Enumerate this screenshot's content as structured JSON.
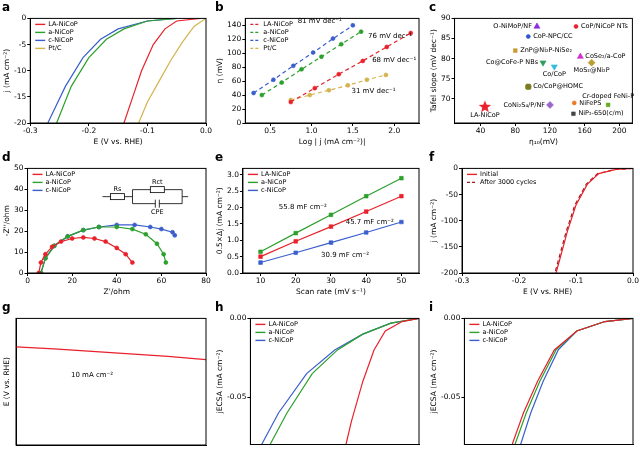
{
  "chart_data": [
    {
      "type": "line",
      "title": "a",
      "x_label": "E (V vs. RHE)",
      "y_label": "j (mA cm⁻²)",
      "xlim": [
        -0.3,
        0.0
      ],
      "xticks": [
        -0.3,
        -0.2,
        -0.1,
        {
          "value": 0,
          "label": "0.0"
        }
      ],
      "ylim": [
        -20,
        0
      ],
      "yticks": [
        -20,
        -15,
        -10,
        -5,
        0
      ],
      "grid": false,
      "legend": "top-left",
      "series": [
        {
          "name": "LA-NiCoP",
          "color": "#e8212b",
          "marker": "none",
          "line_style": "solid",
          "x": [
            -0.01,
            -0.05,
            -0.07,
            -0.09,
            -0.11,
            -0.125,
            -0.14
          ],
          "values": [
            0,
            -0.5,
            -2,
            -5,
            -10,
            -15,
            -20
          ]
        },
        {
          "name": "a-NiCoP",
          "color": "#2ca02c",
          "marker": "none",
          "line_style": "solid",
          "x": [
            -0.05,
            -0.1,
            -0.14,
            -0.17,
            -0.2,
            -0.23,
            -0.255
          ],
          "values": [
            0,
            -0.5,
            -2,
            -4,
            -7.5,
            -13,
            -20
          ]
        },
        {
          "name": "c-NiCoP",
          "color": "#3a5fcd",
          "marker": "none",
          "line_style": "solid",
          "x": [
            -0.05,
            -0.1,
            -0.15,
            -0.18,
            -0.21,
            -0.24,
            -0.27
          ],
          "values": [
            0,
            -0.5,
            -2,
            -4,
            -7.5,
            -13,
            -20
          ]
        },
        {
          "name": "Pt/C",
          "color": "#d4b24c",
          "marker": "none",
          "line_style": "solid",
          "x": [
            0,
            -0.02,
            -0.04,
            -0.06,
            -0.08,
            -0.1,
            -0.115
          ],
          "values": [
            0,
            -1.5,
            -4.5,
            -8,
            -12,
            -16,
            -20
          ]
        }
      ]
    },
    {
      "type": "line",
      "title": "b",
      "x_label": "Log | j (mA cm⁻²)|",
      "y_label": "η (mV)",
      "xlim": [
        0.2,
        2.3
      ],
      "xticks": [
        0.5,
        {
          "value": 1,
          "label": "1.0"
        },
        1.5,
        {
          "value": 2,
          "label": "2.0"
        }
      ],
      "ylim": [
        0,
        150
      ],
      "yticks": [
        0,
        20,
        40,
        60,
        80,
        100,
        120,
        140
      ],
      "grid": false,
      "legend": "top-left",
      "series": [
        {
          "name": "LA-NiCoP",
          "color": "#e8212b",
          "marker": "circle",
          "line_style": "dashed",
          "x": [
            0.75,
            1.04,
            1.33,
            1.62,
            1.91,
            2.2
          ],
          "values": [
            30,
            50,
            70,
            89,
            109,
            129
          ]
        },
        {
          "name": "a-NiCoP",
          "color": "#2ca02c",
          "marker": "circle",
          "line_style": "dashed",
          "x": [
            0.4,
            0.64,
            0.88,
            1.12,
            1.36,
            1.6
          ],
          "values": [
            40,
            58,
            77,
            95,
            113,
            131
          ]
        },
        {
          "name": "c-NiCoP",
          "color": "#3a5fcd",
          "marker": "circle",
          "line_style": "dashed",
          "x": [
            0.3,
            0.54,
            0.78,
            1.02,
            1.26,
            1.5
          ],
          "values": [
            43,
            62,
            82,
            101,
            121,
            140
          ]
        },
        {
          "name": "Pt/C",
          "color": "#d4b24c",
          "marker": "circle",
          "line_style": "dashed",
          "x": [
            0.75,
            0.98,
            1.21,
            1.44,
            1.67,
            1.9
          ],
          "values": [
            33,
            40,
            47,
            54,
            62,
            69
          ]
        }
      ],
      "annotations": [
        {
          "text": "81 mV dec⁻¹",
          "x": 1.1,
          "y": 146
        },
        {
          "text": "76 mV dec⁻¹",
          "x": 1.95,
          "y": 125
        },
        {
          "text": "68 mV dec⁻¹",
          "x": 2.0,
          "y": 90
        },
        {
          "text": "31 mV dec⁻¹",
          "x": 1.75,
          "y": 45
        }
      ]
    },
    {
      "type": "scatter",
      "title": "c",
      "x_label": "η₁₀(mV)",
      "y_label": "Tafel slope (mV dec⁻¹)",
      "xlim": [
        10,
        215
      ],
      "xticks": [
        40,
        80,
        120,
        160,
        200
      ],
      "ylim": [
        64,
        90
      ],
      "yticks": [
        70,
        75,
        80,
        85,
        90
      ],
      "grid": false,
      "series": [
        {
          "name": "O-NiMoP/NF",
          "color": "#8a2be2",
          "marker": "triangle",
          "line_style": "none",
          "x": [
            105
          ],
          "values": [
            88
          ]
        },
        {
          "name": "CoP/NiCoP NTs",
          "color": "#e8212b",
          "marker": "circle",
          "line_style": "none",
          "x": [
            150
          ],
          "values": [
            88
          ]
        },
        {
          "name": "CoP-NPC/CC",
          "color": "#3355cc",
          "marker": "circle",
          "line_style": "none",
          "x": [
            95
          ],
          "values": [
            85.5
          ]
        },
        {
          "name": "ZnP@Ni₂P-NiSe₂",
          "color": "#cc9933",
          "marker": "square",
          "line_style": "none",
          "x": [
            80
          ],
          "values": [
            82
          ]
        },
        {
          "name": "Co@CoFe-P NBs",
          "color": "#2e9e5e",
          "marker": "triangle_down",
          "line_style": "none",
          "x": [
            112
          ],
          "values": [
            79
          ]
        },
        {
          "name": "CoSe₂/a-CoP",
          "color": "#cc33cc",
          "marker": "triangle",
          "line_style": "none",
          "x": [
            155
          ],
          "values": [
            80.5
          ]
        },
        {
          "name": "Co/CoP",
          "color": "#33bbdd",
          "marker": "triangle_down",
          "line_style": "none",
          "x": [
            125
          ],
          "values": [
            78
          ]
        },
        {
          "name": "MoS₂@Ni₂P",
          "color": "#b8a030",
          "marker": "diamond",
          "line_style": "none",
          "x": [
            168
          ],
          "values": [
            79
          ]
        },
        {
          "name": "Co/CoP@HOMC",
          "color": "#7a7a20",
          "marker": "rounded_square",
          "line_style": "none",
          "x": [
            95
          ],
          "values": [
            73
          ]
        },
        {
          "name": "CoNi₂S₄/P/NF",
          "color": "#9966cc",
          "marker": "diamond",
          "line_style": "none",
          "x": [
            120
          ],
          "values": [
            68.5
          ]
        },
        {
          "name": "NiFePS",
          "color": "#ee7722",
          "marker": "circle",
          "line_style": "none",
          "x": [
            148
          ],
          "values": [
            69
          ]
        },
        {
          "name": "Cr-doped FeNi-P",
          "color": "#66aa22",
          "marker": "square",
          "line_style": "none",
          "x": [
            187
          ],
          "values": [
            68.5
          ]
        },
        {
          "name": "NiP₂-650(c/m)",
          "color": "#444444",
          "marker": "square",
          "line_style": "none",
          "x": [
            147
          ],
          "values": [
            66.3
          ]
        },
        {
          "name": "LA-NiCoP",
          "color": "#e8212b",
          "marker": "star",
          "line_style": "none",
          "x": [
            45
          ],
          "values": [
            68
          ]
        }
      ]
    },
    {
      "type": "line",
      "title": "d",
      "x_label": "Z'/ohm",
      "y_label": "-Z''/ohm",
      "xlim": [
        0,
        80
      ],
      "xticks": [
        0,
        20,
        40,
        60,
        80
      ],
      "ylim": [
        0,
        50
      ],
      "yticks": [
        0,
        10,
        20,
        30,
        40,
        50
      ],
      "grid": false,
      "legend": "top-left",
      "inset_labels": [
        "Rs",
        "Rct",
        "CPE"
      ],
      "series": [
        {
          "name": "LA-NiCoP",
          "color": "#e8212b",
          "marker": "circle",
          "line_style": "solid",
          "x": [
            5,
            6,
            8,
            11,
            15,
            20,
            25,
            30,
            35,
            40,
            44,
            47
          ],
          "values": [
            0,
            5,
            9,
            12.5,
            15,
            16.5,
            17,
            16.5,
            15,
            12,
            9,
            5
          ]
        },
        {
          "name": "a-NiCoP",
          "color": "#2ca02c",
          "marker": "circle",
          "line_style": "solid",
          "x": [
            6,
            8,
            12,
            18,
            25,
            32,
            40,
            47,
            53,
            58,
            61,
            62
          ],
          "values": [
            0,
            7,
            13,
            17.5,
            20.5,
            22,
            22,
            21,
            18.5,
            14,
            9,
            5
          ]
        },
        {
          "name": "c-NiCoP",
          "color": "#3a5fcd",
          "marker": "circle",
          "line_style": "solid",
          "x": [
            6,
            8,
            12,
            18,
            25,
            32,
            40,
            48,
            55,
            60,
            65,
            66
          ],
          "values": [
            0,
            7,
            13,
            17.5,
            20.5,
            22,
            23,
            23,
            22,
            21,
            19.5,
            18
          ]
        }
      ]
    },
    {
      "type": "line",
      "title": "e",
      "x_label": "Scan rate (mV s⁻¹)",
      "y_label": "0.5×Δj (mA cm⁻²)",
      "xlim": [
        5,
        55
      ],
      "xticks": [
        10,
        20,
        30,
        40,
        50
      ],
      "ylim": [
        0,
        3.2
      ],
      "yticks": [
        {
          "value": 0,
          "label": "0.0"
        },
        0.5,
        {
          "value": 1,
          "label": "1.0"
        },
        1.5,
        {
          "value": 2,
          "label": "2.0"
        },
        2.5,
        {
          "value": 3,
          "label": "3.0"
        }
      ],
      "grid": false,
      "legend": "top-left",
      "series": [
        {
          "name": "LA-NiCoP",
          "color": "#e8212b",
          "marker": "square",
          "line_style": "solid",
          "x": [
            10,
            20,
            30,
            40,
            50
          ],
          "values": [
            0.5,
            0.97,
            1.42,
            1.88,
            2.35
          ]
        },
        {
          "name": "a-NiCoP",
          "color": "#2ca02c",
          "marker": "square",
          "line_style": "solid",
          "x": [
            10,
            20,
            30,
            40,
            50
          ],
          "values": [
            0.65,
            1.22,
            1.78,
            2.35,
            2.9
          ]
        },
        {
          "name": "c-NiCoP",
          "color": "#3a5fcd",
          "marker": "square",
          "line_style": "solid",
          "x": [
            10,
            20,
            30,
            40,
            50
          ],
          "values": [
            0.32,
            0.62,
            0.93,
            1.24,
            1.56
          ]
        }
      ],
      "annotations": [
        {
          "text": "55.8 mF cm⁻²",
          "x": 22,
          "y": 2.0
        },
        {
          "text": "45.7 mF cm⁻²",
          "x": 41,
          "y": 1.55
        },
        {
          "text": "30.9 mF cm⁻²",
          "x": 34,
          "y": 0.55
        }
      ]
    },
    {
      "type": "line",
      "title": "f",
      "x_label": "E (V vs. RHE)",
      "y_label": "j (mA cm⁻²)",
      "xlim": [
        -0.3,
        0.0
      ],
      "xticks": [
        -0.3,
        -0.2,
        -0.1,
        {
          "value": 0,
          "label": "0.0"
        }
      ],
      "ylim": [
        -200,
        0
      ],
      "yticks": [
        -200,
        -150,
        -100,
        -50,
        0
      ],
      "grid": false,
      "legend": "top-left",
      "series": [
        {
          "name": "Initial",
          "color": "#e8212b",
          "marker": "none",
          "line_style": "solid",
          "x": [
            0,
            -0.03,
            -0.06,
            -0.08,
            -0.1,
            -0.115,
            -0.125,
            -0.135
          ],
          "values": [
            0,
            -2,
            -10,
            -30,
            -70,
            -120,
            -160,
            -200
          ]
        },
        {
          "name": "After 3000 cycles",
          "color": "#a01818",
          "marker": "none",
          "line_style": "dashed",
          "x": [
            0,
            -0.032,
            -0.062,
            -0.082,
            -0.102,
            -0.117,
            -0.127,
            -0.137
          ],
          "values": [
            0,
            -2,
            -10,
            -30,
            -70,
            -120,
            -160,
            -200
          ]
        }
      ]
    },
    {
      "type": "line",
      "title": "g",
      "y_label": "E (V vs. RHE)",
      "xlim": [
        0,
        10
      ],
      "ylim": [
        -0.2,
        0.0
      ],
      "grid": false,
      "tick_labels": false,
      "series": [
        {
          "name": "LA-NiCoP",
          "color": "#e8212b",
          "marker": "none",
          "line_style": "solid",
          "x": [
            0,
            2,
            4,
            6,
            8,
            10
          ],
          "values": [
            -0.045,
            -0.048,
            -0.052,
            -0.056,
            -0.06,
            -0.065
          ]
        }
      ],
      "annotations": [
        {
          "text": "10 mA cm⁻²",
          "x": 4,
          "y": -0.09
        }
      ]
    },
    {
      "type": "line",
      "title": "h",
      "y_label": "jECSA (mA cm⁻²)",
      "xlim": [
        -0.3,
        0.0
      ],
      "ylim": [
        -0.08,
        0.0
      ],
      "yticks": [
        -0.05,
        {
          "value": 0,
          "label": "0.00"
        }
      ],
      "grid": false,
      "tick_labels": "y",
      "legend": "top-left",
      "series": [
        {
          "name": "LA-NiCoP",
          "color": "#e8212b",
          "marker": "none",
          "line_style": "solid",
          "x": [
            0,
            -0.03,
            -0.06,
            -0.08,
            -0.1,
            -0.12,
            -0.13
          ],
          "values": [
            0,
            -0.002,
            -0.008,
            -0.02,
            -0.04,
            -0.065,
            -0.08
          ]
        },
        {
          "name": "a-NiCoP",
          "color": "#2ca02c",
          "marker": "none",
          "line_style": "solid",
          "x": [
            0,
            -0.05,
            -0.1,
            -0.145,
            -0.19,
            -0.235,
            -0.265
          ],
          "values": [
            0,
            -0.003,
            -0.01,
            -0.02,
            -0.035,
            -0.06,
            -0.08
          ]
        },
        {
          "name": "c-NiCoP",
          "color": "#3a5fcd",
          "marker": "none",
          "line_style": "solid",
          "x": [
            0,
            -0.05,
            -0.1,
            -0.15,
            -0.2,
            -0.25,
            -0.28
          ],
          "values": [
            0,
            -0.003,
            -0.01,
            -0.02,
            -0.035,
            -0.06,
            -0.08
          ]
        }
      ]
    },
    {
      "type": "line",
      "title": "i",
      "y_label": "jECSA (mA cm⁻²)",
      "xlim": [
        -0.3,
        0.0
      ],
      "ylim": [
        -0.08,
        0.0
      ],
      "yticks": [
        -0.05,
        {
          "value": 0,
          "label": "0.00"
        }
      ],
      "grid": false,
      "tick_labels": "y",
      "legend": "top-left",
      "series": [
        {
          "name": "LA-NiCoP",
          "color": "#e8212b",
          "marker": "none",
          "line_style": "solid",
          "x": [
            0,
            -0.05,
            -0.1,
            -0.14,
            -0.17,
            -0.195,
            -0.215
          ],
          "values": [
            0,
            -0.002,
            -0.008,
            -0.02,
            -0.04,
            -0.06,
            -0.08
          ]
        },
        {
          "name": "a-NiCoP",
          "color": "#2ca02c",
          "marker": "none",
          "line_style": "solid",
          "x": [
            0,
            -0.05,
            -0.1,
            -0.137,
            -0.166,
            -0.19,
            -0.21
          ],
          "values": [
            0,
            -0.002,
            -0.008,
            -0.02,
            -0.04,
            -0.06,
            -0.08
          ]
        },
        {
          "name": "c-NiCoP",
          "color": "#3a5fcd",
          "marker": "none",
          "line_style": "solid",
          "x": [
            0,
            -0.05,
            -0.1,
            -0.133,
            -0.16,
            -0.182,
            -0.2
          ],
          "values": [
            0,
            -0.002,
            -0.008,
            -0.02,
            -0.04,
            -0.06,
            -0.08
          ]
        }
      ]
    }
  ]
}
